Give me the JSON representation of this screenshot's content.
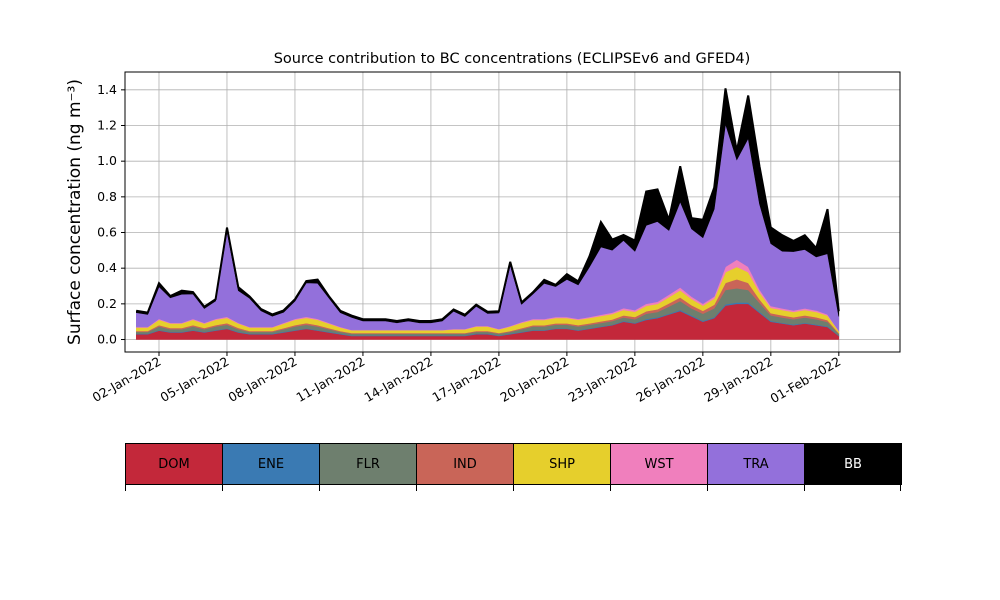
{
  "chart_data": {
    "type": "area",
    "stacked": true,
    "title": "Source contribution to BC concentrations (ECLIPSEv6 and GFED4)",
    "xlabel": "",
    "ylabel": "Surface concentration (ng m⁻³)",
    "ylim": [
      -0.07,
      1.5
    ],
    "xlim_days": [
      -0.5,
      33.7
    ],
    "yticks": [
      0.0,
      0.2,
      0.4,
      0.6,
      0.8,
      1.0,
      1.2,
      1.4
    ],
    "ytick_labels": [
      "0.0",
      "0.2",
      "0.4",
      "0.6",
      "0.8",
      "1.0",
      "1.2",
      "1.4"
    ],
    "xticks_days": [
      1,
      4,
      7,
      10,
      13,
      16,
      19,
      22,
      25,
      28,
      31
    ],
    "xtick_labels": [
      "02-Jan-2022",
      "05-Jan-2022",
      "08-Jan-2022",
      "11-Jan-2022",
      "14-Jan-2022",
      "17-Jan-2022",
      "20-Jan-2022",
      "23-Jan-2022",
      "26-Jan-2022",
      "29-Jan-2022",
      "01-Feb-2022"
    ],
    "grid": true,
    "x_days": [
      0.0,
      0.5,
      1.0,
      1.5,
      2.0,
      2.5,
      3.0,
      3.5,
      4.0,
      4.5,
      5.0,
      5.5,
      6.0,
      6.5,
      7.0,
      7.5,
      8.0,
      8.5,
      9.0,
      9.5,
      10.0,
      10.5,
      11.0,
      11.5,
      12.0,
      12.5,
      13.0,
      13.5,
      14.0,
      14.5,
      15.0,
      15.5,
      16.0,
      16.5,
      17.0,
      17.5,
      18.0,
      18.5,
      19.0,
      19.5,
      20.0,
      20.5,
      21.0,
      21.5,
      22.0,
      22.5,
      23.0,
      23.5,
      24.0,
      24.5,
      25.0,
      25.5,
      26.0,
      26.5,
      27.0,
      27.5,
      28.0,
      28.5,
      29.0,
      29.5,
      30.0,
      30.5,
      31.0
    ],
    "series": [
      {
        "name": "DOM",
        "color": "#c3283a",
        "values": [
          0.03,
          0.03,
          0.05,
          0.04,
          0.04,
          0.05,
          0.04,
          0.05,
          0.06,
          0.04,
          0.03,
          0.03,
          0.03,
          0.04,
          0.05,
          0.06,
          0.05,
          0.04,
          0.03,
          0.02,
          0.02,
          0.02,
          0.02,
          0.02,
          0.02,
          0.02,
          0.02,
          0.02,
          0.02,
          0.02,
          0.03,
          0.03,
          0.02,
          0.03,
          0.04,
          0.05,
          0.05,
          0.06,
          0.06,
          0.05,
          0.06,
          0.07,
          0.08,
          0.1,
          0.09,
          0.11,
          0.12,
          0.14,
          0.16,
          0.13,
          0.1,
          0.12,
          0.19,
          0.2,
          0.2,
          0.15,
          0.1,
          0.09,
          0.08,
          0.09,
          0.08,
          0.07,
          0.02
        ]
      },
      {
        "name": "ENE",
        "color": "#3a7ab3",
        "values": [
          0.003,
          0.003,
          0.003,
          0.003,
          0.003,
          0.003,
          0.003,
          0.003,
          0.003,
          0.003,
          0.003,
          0.003,
          0.003,
          0.003,
          0.003,
          0.003,
          0.003,
          0.003,
          0.003,
          0.003,
          0.003,
          0.003,
          0.003,
          0.003,
          0.003,
          0.003,
          0.003,
          0.003,
          0.003,
          0.003,
          0.003,
          0.003,
          0.003,
          0.003,
          0.003,
          0.003,
          0.003,
          0.003,
          0.003,
          0.003,
          0.003,
          0.003,
          0.003,
          0.004,
          0.004,
          0.005,
          0.005,
          0.005,
          0.006,
          0.005,
          0.005,
          0.005,
          0.008,
          0.008,
          0.008,
          0.006,
          0.005,
          0.004,
          0.004,
          0.004,
          0.004,
          0.004,
          0.003
        ]
      },
      {
        "name": "FLR",
        "color": "#6e7f6e",
        "values": [
          0.01,
          0.01,
          0.02,
          0.015,
          0.015,
          0.02,
          0.015,
          0.02,
          0.02,
          0.015,
          0.01,
          0.01,
          0.01,
          0.015,
          0.02,
          0.02,
          0.02,
          0.015,
          0.01,
          0.01,
          0.01,
          0.01,
          0.01,
          0.01,
          0.01,
          0.01,
          0.01,
          0.01,
          0.01,
          0.01,
          0.01,
          0.01,
          0.01,
          0.01,
          0.015,
          0.02,
          0.02,
          0.02,
          0.02,
          0.02,
          0.02,
          0.02,
          0.02,
          0.02,
          0.02,
          0.03,
          0.03,
          0.04,
          0.05,
          0.04,
          0.04,
          0.05,
          0.08,
          0.08,
          0.07,
          0.05,
          0.03,
          0.03,
          0.03,
          0.03,
          0.03,
          0.025,
          0.01
        ]
      },
      {
        "name": "IND",
        "color": "#c96558",
        "values": [
          0.005,
          0.005,
          0.008,
          0.007,
          0.007,
          0.008,
          0.007,
          0.008,
          0.009,
          0.007,
          0.005,
          0.005,
          0.005,
          0.006,
          0.008,
          0.009,
          0.008,
          0.006,
          0.005,
          0.004,
          0.004,
          0.004,
          0.004,
          0.004,
          0.004,
          0.004,
          0.004,
          0.004,
          0.004,
          0.004,
          0.005,
          0.005,
          0.004,
          0.005,
          0.006,
          0.007,
          0.007,
          0.008,
          0.008,
          0.008,
          0.008,
          0.009,
          0.01,
          0.012,
          0.012,
          0.014,
          0.015,
          0.018,
          0.02,
          0.018,
          0.016,
          0.02,
          0.04,
          0.05,
          0.04,
          0.02,
          0.013,
          0.012,
          0.011,
          0.012,
          0.011,
          0.01,
          0.004
        ]
      },
      {
        "name": "SHP",
        "color": "#e6cf2c",
        "values": [
          0.02,
          0.02,
          0.03,
          0.025,
          0.025,
          0.03,
          0.025,
          0.03,
          0.03,
          0.025,
          0.02,
          0.02,
          0.02,
          0.025,
          0.03,
          0.03,
          0.03,
          0.025,
          0.02,
          0.015,
          0.015,
          0.015,
          0.015,
          0.015,
          0.015,
          0.015,
          0.015,
          0.015,
          0.02,
          0.02,
          0.025,
          0.025,
          0.02,
          0.025,
          0.03,
          0.03,
          0.03,
          0.03,
          0.03,
          0.03,
          0.03,
          0.03,
          0.03,
          0.03,
          0.03,
          0.03,
          0.03,
          0.035,
          0.04,
          0.035,
          0.03,
          0.035,
          0.06,
          0.07,
          0.06,
          0.04,
          0.03,
          0.03,
          0.03,
          0.03,
          0.03,
          0.025,
          0.01
        ]
      },
      {
        "name": "WST",
        "color": "#f07fbd",
        "values": [
          0.003,
          0.003,
          0.005,
          0.004,
          0.004,
          0.005,
          0.004,
          0.005,
          0.006,
          0.004,
          0.003,
          0.003,
          0.003,
          0.004,
          0.005,
          0.006,
          0.005,
          0.004,
          0.003,
          0.002,
          0.002,
          0.002,
          0.002,
          0.002,
          0.002,
          0.002,
          0.002,
          0.002,
          0.002,
          0.002,
          0.003,
          0.003,
          0.002,
          0.003,
          0.004,
          0.005,
          0.005,
          0.006,
          0.006,
          0.005,
          0.006,
          0.007,
          0.008,
          0.01,
          0.009,
          0.011,
          0.012,
          0.014,
          0.016,
          0.013,
          0.01,
          0.012,
          0.03,
          0.04,
          0.03,
          0.015,
          0.01,
          0.009,
          0.008,
          0.009,
          0.008,
          0.007,
          0.002
        ]
      },
      {
        "name": "TRA",
        "color": "#9370db",
        "values": [
          0.08,
          0.07,
          0.18,
          0.14,
          0.16,
          0.14,
          0.08,
          0.1,
          0.48,
          0.18,
          0.16,
          0.09,
          0.06,
          0.06,
          0.1,
          0.19,
          0.2,
          0.14,
          0.08,
          0.07,
          0.05,
          0.05,
          0.05,
          0.04,
          0.05,
          0.04,
          0.04,
          0.05,
          0.1,
          0.07,
          0.11,
          0.07,
          0.09,
          0.34,
          0.1,
          0.14,
          0.2,
          0.17,
          0.21,
          0.19,
          0.28,
          0.38,
          0.35,
          0.38,
          0.33,
          0.44,
          0.45,
          0.36,
          0.48,
          0.38,
          0.37,
          0.49,
          0.8,
          0.56,
          0.72,
          0.48,
          0.35,
          0.32,
          0.33,
          0.33,
          0.3,
          0.34,
          0.08
        ]
      },
      {
        "name": "BB",
        "color": "#000000",
        "values": [
          0.01,
          0.01,
          0.02,
          0.01,
          0.02,
          0.01,
          0.01,
          0.01,
          0.02,
          0.02,
          0.01,
          0.01,
          0.01,
          0.01,
          0.01,
          0.01,
          0.02,
          0.01,
          0.01,
          0.01,
          0.01,
          0.01,
          0.01,
          0.01,
          0.01,
          0.01,
          0.01,
          0.01,
          0.01,
          0.01,
          0.01,
          0.01,
          0.01,
          0.02,
          0.01,
          0.01,
          0.02,
          0.01,
          0.03,
          0.02,
          0.06,
          0.14,
          0.06,
          0.03,
          0.06,
          0.19,
          0.18,
          0.06,
          0.2,
          0.06,
          0.1,
          0.12,
          0.2,
          0.05,
          0.24,
          0.21,
          0.09,
          0.09,
          0.06,
          0.08,
          0.05,
          0.25,
          0.03
        ]
      }
    ]
  },
  "legend": {
    "items": [
      {
        "label": "DOM",
        "color": "#c3283a",
        "text_color": "#000000"
      },
      {
        "label": "ENE",
        "color": "#3a7ab3",
        "text_color": "#000000"
      },
      {
        "label": "FLR",
        "color": "#6e7f6e",
        "text_color": "#000000"
      },
      {
        "label": "IND",
        "color": "#c96558",
        "text_color": "#000000"
      },
      {
        "label": "SHP",
        "color": "#e6cf2c",
        "text_color": "#000000"
      },
      {
        "label": "WST",
        "color": "#f07fbd",
        "text_color": "#000000"
      },
      {
        "label": "TRA",
        "color": "#9370db",
        "text_color": "#000000"
      },
      {
        "label": "BB",
        "color": "#000000",
        "text_color": "#ffffff"
      }
    ]
  }
}
